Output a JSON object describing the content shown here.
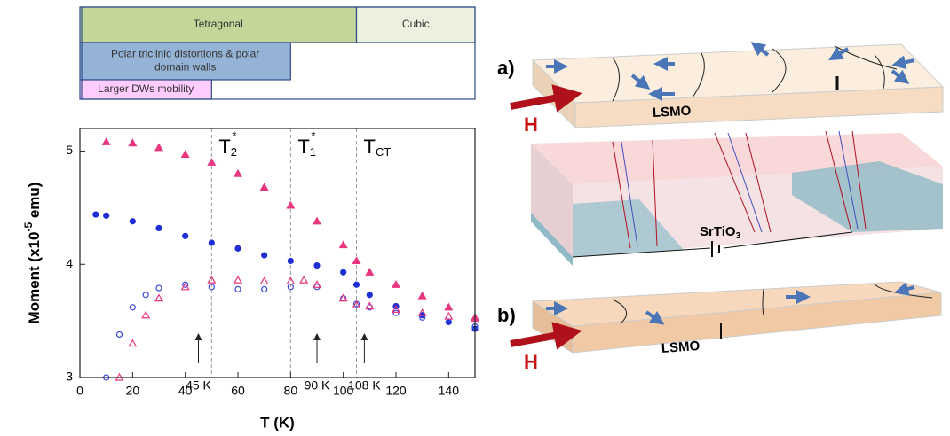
{
  "chart_data": {
    "type": "scatter",
    "xlabel": "T (K)",
    "ylabel": {
      "main": "Moment (x10",
      "sup": "-5",
      "unit": " emu)"
    },
    "xlim": [
      0,
      150
    ],
    "ylim": [
      3,
      5.2
    ],
    "xticks": [
      0,
      20,
      40,
      60,
      80,
      100,
      120,
      140
    ],
    "yticks": [
      3,
      4,
      5
    ],
    "series": [
      {
        "color": "#e8367f",
        "marker": "triangle",
        "filled": true,
        "x": [
          10,
          20,
          30,
          40,
          50,
          60,
          70,
          80,
          90,
          100,
          105,
          110,
          120,
          130,
          140,
          150
        ],
        "values": [
          5.08,
          5.07,
          5.03,
          4.97,
          4.9,
          4.8,
          4.68,
          4.52,
          4.38,
          4.17,
          4.03,
          3.93,
          3.82,
          3.72,
          3.62,
          3.53
        ]
      },
      {
        "color": "#1f2fd6",
        "marker": "circle",
        "filled": true,
        "x": [
          6,
          10,
          20,
          30,
          40,
          50,
          60,
          70,
          80,
          90,
          100,
          105,
          110,
          120,
          130,
          140,
          150
        ],
        "values": [
          4.44,
          4.43,
          4.38,
          4.32,
          4.25,
          4.19,
          4.14,
          4.08,
          4.03,
          3.99,
          3.93,
          3.82,
          3.73,
          3.63,
          3.55,
          3.49,
          3.43
        ]
      },
      {
        "color": "#3a48d8",
        "marker": "circle",
        "filled": false,
        "x": [
          10,
          15,
          20,
          25,
          30,
          40,
          50,
          60,
          70,
          80,
          90,
          100,
          105,
          110,
          120,
          130,
          140,
          150
        ],
        "values": [
          3.0,
          3.38,
          3.62,
          3.73,
          3.79,
          3.82,
          3.8,
          3.78,
          3.78,
          3.8,
          3.8,
          3.7,
          3.65,
          3.62,
          3.57,
          3.53,
          3.49,
          3.45
        ]
      },
      {
        "color": "#e8367f",
        "marker": "triangle",
        "filled": false,
        "x": [
          15,
          20,
          25,
          30,
          40,
          50,
          60,
          70,
          80,
          85,
          90,
          100,
          105,
          110,
          120,
          130,
          140,
          150
        ],
        "values": [
          3.0,
          3.3,
          3.55,
          3.7,
          3.8,
          3.86,
          3.86,
          3.85,
          3.85,
          3.86,
          3.82,
          3.7,
          3.64,
          3.63,
          3.6,
          3.57,
          3.54,
          3.52
        ]
      }
    ],
    "vlines": [
      {
        "x": 50,
        "label": "T",
        "sub": "2",
        "sup": "*"
      },
      {
        "x": 80,
        "label": "T",
        "sub": "1",
        "sup": "*"
      },
      {
        "x": 105,
        "label": "T",
        "sub": "CT"
      }
    ],
    "arrows": [
      {
        "x": 45,
        "label": "45 K"
      },
      {
        "x": 90,
        "label": "90 K"
      },
      {
        "x": 108,
        "label": "108 K"
      }
    ],
    "phase_rows": [
      [
        {
          "label": [
            "Tetragonal"
          ],
          "start": 0,
          "end": 105,
          "color": "#c4d79b"
        },
        {
          "label": [
            "Cubic"
          ],
          "start": 105,
          "end": 150,
          "color": "#ebf1de"
        }
      ],
      [
        {
          "label": [
            "Polar triclinic distortions  & polar",
            "domain walls"
          ],
          "start": 0,
          "end": 80,
          "color": "#95b3d7"
        }
      ],
      [
        {
          "label": [
            "Larger DWs mobility"
          ],
          "start": 0,
          "end": 50,
          "color": "#ffccff"
        }
      ]
    ]
  },
  "schematic": {
    "panel_a": "a)",
    "panel_b": "b)",
    "film": "LSMO",
    "film_b": "LSMO",
    "field": "H",
    "field_b": "H",
    "substrate": {
      "main": "SrTiO",
      "sub": "3"
    }
  }
}
